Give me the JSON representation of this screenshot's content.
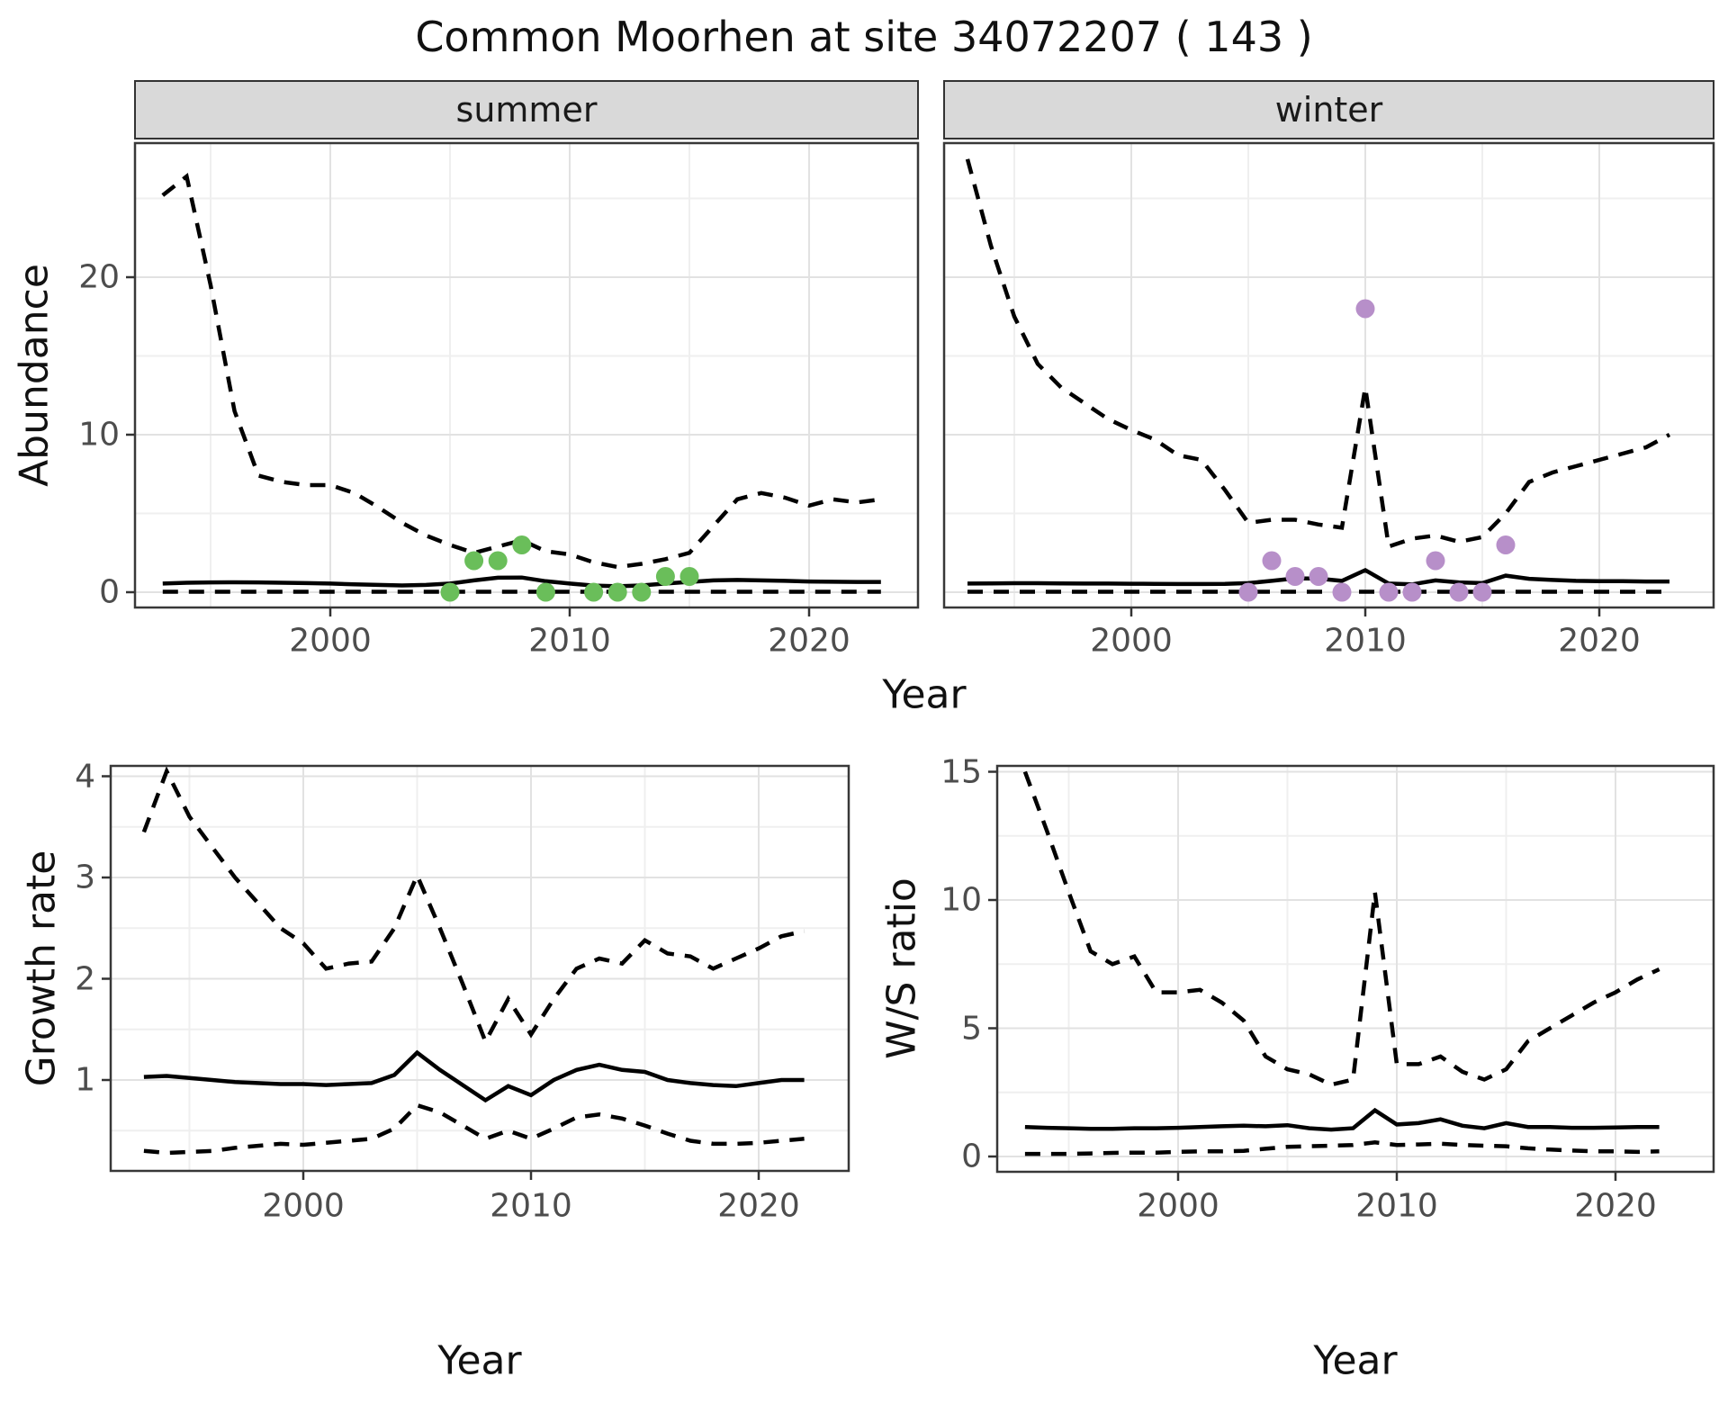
{
  "title": "Common Moorhen at site 34072207 ( 143 )",
  "facets": {
    "summer": "summer",
    "winter": "winter"
  },
  "axes": {
    "abundance": "Abundance",
    "growth": "Growth rate",
    "ws": "W/S ratio",
    "year": "Year"
  },
  "colors": {
    "summer_point": "#6ABE5A",
    "winter_point": "#B78FC9",
    "line": "#000000",
    "strip_bg": "#D9D9D9",
    "grid_major": "#E2E2E2",
    "grid_minor": "#EFEFEF",
    "axis_text": "#4D4D4D",
    "panel_border": "#383838"
  },
  "chart_data": [
    {
      "type": "line",
      "panel": "summer",
      "facet_label": "summer",
      "xlabel": "Year",
      "ylabel": "Abundance",
      "x_ticks": [
        2000,
        2010,
        2020
      ],
      "x_minor": [
        1995,
        2005,
        2015
      ],
      "y_ticks": [
        0,
        10,
        20
      ],
      "y_minor": [
        5,
        15,
        25
      ],
      "xlim": [
        1991.8,
        2024.6
      ],
      "ylim": [
        -1.0,
        28.6
      ],
      "years": [
        1993,
        1994,
        1995,
        1996,
        1997,
        1998,
        1999,
        2000,
        2001,
        2002,
        2003,
        2004,
        2005,
        2006,
        2007,
        2008,
        2009,
        2010,
        2011,
        2012,
        2013,
        2014,
        2015,
        2016,
        2017,
        2018,
        2019,
        2020,
        2021,
        2022,
        2023
      ],
      "series": [
        {
          "name": "upper-ci",
          "style": "dashed",
          "values": [
            25.2,
            26.4,
            19.5,
            11.5,
            7.4,
            7.0,
            6.8,
            6.8,
            6.3,
            5.4,
            4.4,
            3.6,
            3.0,
            2.5,
            2.9,
            3.3,
            2.6,
            2.4,
            1.9,
            1.6,
            1.8,
            2.1,
            2.5,
            4.2,
            5.9,
            6.3,
            6.0,
            5.5,
            5.9,
            5.7,
            5.9
          ]
        },
        {
          "name": "mean",
          "style": "solid",
          "values": [
            0.55,
            0.6,
            0.62,
            0.63,
            0.62,
            0.6,
            0.58,
            0.55,
            0.5,
            0.46,
            0.43,
            0.46,
            0.55,
            0.75,
            0.92,
            0.93,
            0.7,
            0.55,
            0.42,
            0.38,
            0.43,
            0.55,
            0.65,
            0.75,
            0.78,
            0.75,
            0.72,
            0.68,
            0.66,
            0.65,
            0.65
          ]
        },
        {
          "name": "lower-ci",
          "style": "dashed",
          "values": [
            0.03,
            0.03,
            0.03,
            0.03,
            0.03,
            0.03,
            0.03,
            0.03,
            0.03,
            0.03,
            0.03,
            0.03,
            0.03,
            0.03,
            0.03,
            0.03,
            0.03,
            0.03,
            0.03,
            0.03,
            0.03,
            0.03,
            0.03,
            0.03,
            0.03,
            0.03,
            0.03,
            0.03,
            0.03,
            0.03,
            0.03
          ]
        }
      ],
      "points": {
        "name": "summer-observations",
        "color": "#6ABE5A",
        "x": [
          2005,
          2006,
          2007,
          2008,
          2009,
          2011,
          2012,
          2013,
          2014,
          2015
        ],
        "y": [
          0,
          2,
          2,
          3,
          0,
          0,
          0,
          0,
          1,
          1
        ]
      }
    },
    {
      "type": "line",
      "panel": "winter",
      "facet_label": "winter",
      "xlabel": "Year",
      "ylabel": "Abundance",
      "x_ticks": [
        2000,
        2010,
        2020
      ],
      "x_minor": [
        1995,
        2005,
        2015
      ],
      "y_ticks": [
        0,
        10,
        20
      ],
      "y_minor": [
        5,
        15,
        25
      ],
      "xlim": [
        1992.0,
        2024.9
      ],
      "ylim": [
        -1.0,
        28.6
      ],
      "years": [
        1993,
        1994,
        1995,
        1996,
        1997,
        1998,
        1999,
        2000,
        2001,
        2002,
        2003,
        2004,
        2005,
        2006,
        2007,
        2008,
        2009,
        2010,
        2011,
        2012,
        2013,
        2014,
        2015,
        2016,
        2017,
        2018,
        2019,
        2020,
        2021,
        2022,
        2023
      ],
      "series": [
        {
          "name": "upper-ci",
          "style": "dashed",
          "values": [
            27.5,
            22.0,
            17.5,
            14.5,
            13.0,
            12.0,
            11.0,
            10.3,
            9.7,
            8.7,
            8.4,
            6.5,
            4.4,
            4.6,
            4.6,
            4.3,
            4.1,
            13.0,
            2.9,
            3.4,
            3.6,
            3.2,
            3.5,
            5.0,
            7.0,
            7.6,
            8.0,
            8.4,
            8.8,
            9.2,
            10.0
          ]
        },
        {
          "name": "mean",
          "style": "solid",
          "values": [
            0.55,
            0.56,
            0.57,
            0.57,
            0.56,
            0.55,
            0.55,
            0.54,
            0.53,
            0.52,
            0.52,
            0.53,
            0.58,
            0.72,
            0.88,
            0.86,
            0.72,
            1.4,
            0.55,
            0.5,
            0.75,
            0.62,
            0.58,
            1.05,
            0.85,
            0.78,
            0.72,
            0.7,
            0.7,
            0.68,
            0.68
          ]
        },
        {
          "name": "lower-ci",
          "style": "dashed",
          "values": [
            0.03,
            0.03,
            0.03,
            0.03,
            0.03,
            0.03,
            0.03,
            0.03,
            0.03,
            0.03,
            0.03,
            0.03,
            0.03,
            0.03,
            0.03,
            0.03,
            0.03,
            0.03,
            0.03,
            0.03,
            0.03,
            0.03,
            0.03,
            0.03,
            0.03,
            0.03,
            0.03,
            0.03,
            0.03,
            0.03,
            0.03
          ]
        }
      ],
      "points": {
        "name": "winter-observations",
        "color": "#B78FC9",
        "x": [
          2005,
          2006,
          2007,
          2008,
          2009,
          2010,
          2011,
          2012,
          2013,
          2014,
          2015,
          2016
        ],
        "y": [
          0,
          2,
          1,
          1,
          0,
          18,
          0,
          0,
          2,
          0,
          0,
          3
        ]
      }
    },
    {
      "type": "line",
      "panel": "growth",
      "facet_label": "",
      "xlabel": "Year",
      "ylabel": "Growth rate",
      "x_ticks": [
        2000,
        2010,
        2020
      ],
      "x_minor": [
        1995,
        2005,
        2015
      ],
      "y_ticks": [
        1,
        2,
        3,
        4
      ],
      "y_minor": [
        0.5,
        1.5,
        2.5,
        3.5
      ],
      "xlim": [
        1991.5,
        2024.0
      ],
      "ylim": [
        0.09,
        4.11
      ],
      "years": [
        1993,
        1994,
        1995,
        1996,
        1997,
        1998,
        1999,
        2000,
        2001,
        2002,
        2003,
        2004,
        2005,
        2006,
        2007,
        2008,
        2009,
        2010,
        2011,
        2012,
        2013,
        2014,
        2015,
        2016,
        2017,
        2018,
        2019,
        2020,
        2021,
        2022
      ],
      "series": [
        {
          "name": "upper-ci",
          "style": "dashed",
          "values": [
            3.45,
            4.05,
            3.6,
            3.3,
            3.0,
            2.75,
            2.5,
            2.35,
            2.1,
            2.15,
            2.17,
            2.5,
            3.02,
            2.5,
            1.95,
            1.38,
            1.8,
            1.45,
            1.8,
            2.1,
            2.2,
            2.15,
            2.38,
            2.25,
            2.22,
            2.1,
            2.2,
            2.3,
            2.42,
            2.47
          ]
        },
        {
          "name": "mean",
          "style": "solid",
          "values": [
            1.03,
            1.04,
            1.02,
            1.0,
            0.98,
            0.97,
            0.96,
            0.96,
            0.95,
            0.96,
            0.97,
            1.05,
            1.27,
            1.1,
            0.95,
            0.8,
            0.94,
            0.85,
            1.0,
            1.1,
            1.15,
            1.1,
            1.08,
            1.0,
            0.97,
            0.95,
            0.94,
            0.97,
            1.0,
            1.0
          ]
        },
        {
          "name": "lower-ci",
          "style": "dashed",
          "values": [
            0.3,
            0.28,
            0.29,
            0.3,
            0.33,
            0.35,
            0.37,
            0.36,
            0.38,
            0.4,
            0.42,
            0.52,
            0.75,
            0.68,
            0.55,
            0.42,
            0.5,
            0.42,
            0.52,
            0.63,
            0.66,
            0.62,
            0.55,
            0.47,
            0.4,
            0.37,
            0.37,
            0.38,
            0.4,
            0.42
          ]
        }
      ],
      "points": null
    },
    {
      "type": "line",
      "panel": "ws",
      "facet_label": "",
      "xlabel": "Year",
      "ylabel": "W/S ratio",
      "x_ticks": [
        2000,
        2010,
        2020
      ],
      "x_minor": [
        1995,
        2005,
        2015
      ],
      "y_ticks": [
        0,
        5,
        10,
        15
      ],
      "y_minor": [
        2.5,
        7.5,
        12.5
      ],
      "xlim": [
        1991.7,
        2024.5
      ],
      "ylim": [
        -0.6,
        15.3
      ],
      "years": [
        1993,
        1994,
        1995,
        1996,
        1997,
        1998,
        1999,
        2000,
        2001,
        2002,
        2003,
        2004,
        2005,
        2006,
        2007,
        2008,
        2009,
        2010,
        2011,
        2012,
        2013,
        2014,
        2015,
        2016,
        2017,
        2018,
        2019,
        2020,
        2021,
        2022
      ],
      "series": [
        {
          "name": "upper-ci",
          "style": "dashed",
          "values": [
            15.0,
            12.7,
            10.3,
            8.0,
            7.5,
            7.8,
            6.4,
            6.4,
            6.5,
            6.0,
            5.3,
            3.9,
            3.4,
            3.2,
            2.8,
            3.0,
            10.3,
            3.6,
            3.6,
            3.9,
            3.3,
            3.0,
            3.4,
            4.5,
            5.0,
            5.5,
            6.0,
            6.4,
            6.9,
            7.3
          ]
        },
        {
          "name": "mean",
          "style": "solid",
          "values": [
            1.15,
            1.12,
            1.1,
            1.08,
            1.08,
            1.1,
            1.1,
            1.12,
            1.15,
            1.18,
            1.2,
            1.18,
            1.22,
            1.1,
            1.05,
            1.1,
            1.8,
            1.25,
            1.3,
            1.45,
            1.2,
            1.1,
            1.3,
            1.15,
            1.15,
            1.12,
            1.12,
            1.13,
            1.15,
            1.15
          ]
        },
        {
          "name": "lower-ci",
          "style": "dashed",
          "values": [
            0.1,
            0.1,
            0.1,
            0.12,
            0.14,
            0.15,
            0.15,
            0.18,
            0.2,
            0.2,
            0.22,
            0.3,
            0.38,
            0.4,
            0.42,
            0.45,
            0.55,
            0.45,
            0.47,
            0.5,
            0.45,
            0.42,
            0.4,
            0.32,
            0.27,
            0.23,
            0.2,
            0.2,
            0.18,
            0.2
          ]
        }
      ],
      "points": null
    }
  ]
}
